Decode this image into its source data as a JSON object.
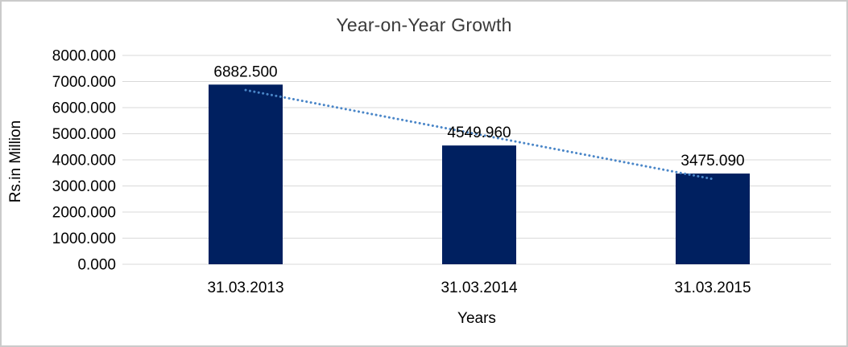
{
  "frame": {
    "border_color": "#cbcbcb",
    "background": "#ffffff"
  },
  "chart_data": {
    "type": "bar",
    "title": "Year-on-Year Growth",
    "xlabel": "Years",
    "ylabel": "Rs.in Million",
    "categories": [
      "31.03.2013",
      "31.03.2014",
      "31.03.2015"
    ],
    "values": [
      6882.5,
      4549.96,
      3475.09
    ],
    "value_labels": [
      "6882.500",
      "4549.960",
      "3475.090"
    ],
    "ylim": [
      0,
      8000
    ],
    "ytick_step": 1000,
    "ytick_labels": [
      "0.000",
      "1000.000",
      "2000.000",
      "3000.000",
      "4000.000",
      "5000.000",
      "6000.000",
      "7000.000",
      "8000.000"
    ],
    "grid": true,
    "legend": "none",
    "bar_color": "#002060",
    "gridline_color": "#d9d9d9",
    "text_color": "#000000",
    "title_color": "#3a3a3a",
    "trendline": {
      "type": "linear",
      "style": "dotted",
      "color": "#4a86c8"
    }
  }
}
